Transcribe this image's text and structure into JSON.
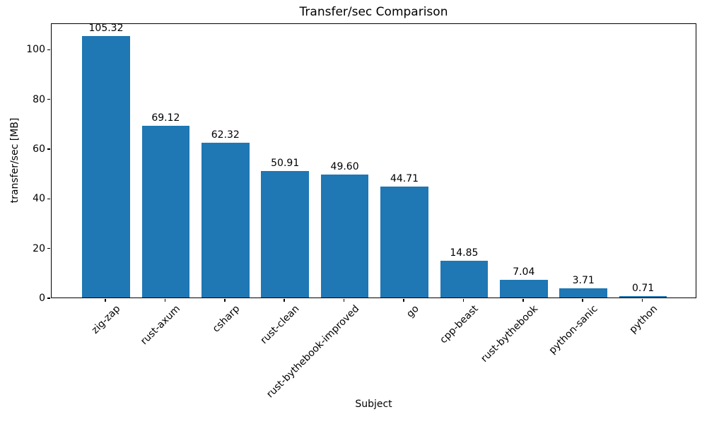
{
  "chart_data": {
    "type": "bar",
    "title": "Transfer/sec Comparison",
    "xlabel": "Subject",
    "ylabel": "transfer/sec [MB]",
    "categories": [
      "zig-zap",
      "rust-axum",
      "csharp",
      "rust-clean",
      "rust-bythebook-improved",
      "go",
      "cpp-beast",
      "rust-bythebook",
      "python-sanic",
      "python"
    ],
    "values": [
      105.32,
      69.12,
      62.32,
      50.91,
      49.6,
      44.71,
      14.85,
      7.04,
      3.71,
      0.71
    ],
    "value_labels": [
      "105.32",
      "69.12",
      "62.32",
      "50.91",
      "49.60",
      "44.71",
      "14.85",
      "7.04",
      "3.71",
      "0.71"
    ],
    "y_ticks": [
      0,
      20,
      40,
      60,
      80,
      100
    ],
    "ylim": [
      0,
      110.6
    ],
    "bar_color": "#1f77b4",
    "grid": false,
    "x_tick_rotation_deg": 45
  }
}
